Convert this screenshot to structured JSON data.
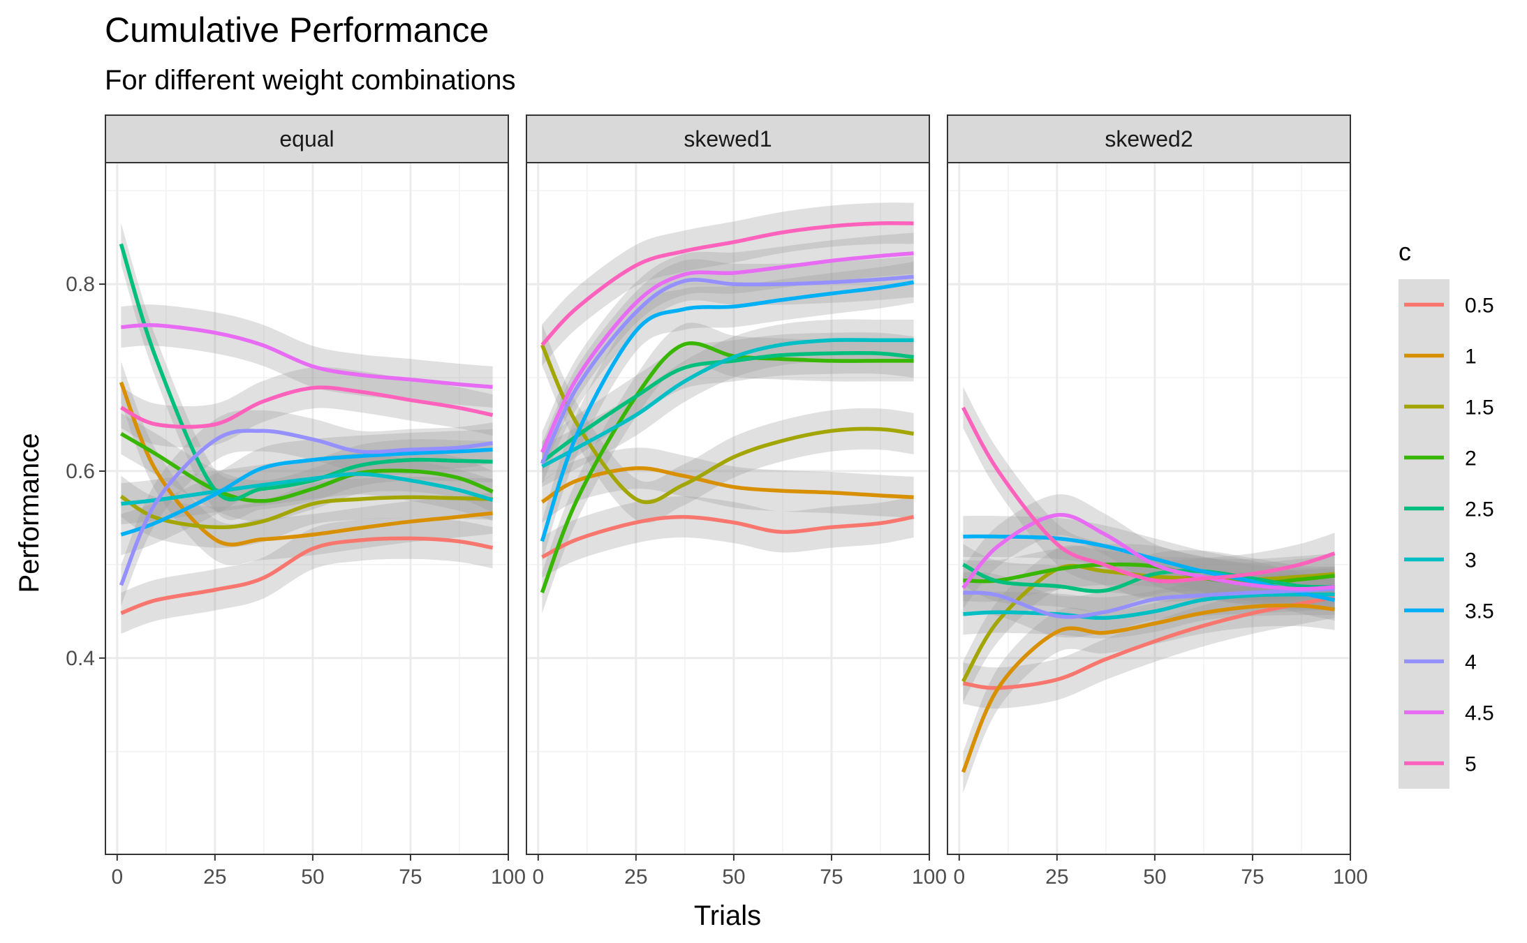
{
  "chart_data": {
    "type": "line",
    "title": "Cumulative Performance",
    "subtitle": "For different weight combinations",
    "xlabel": "Trials",
    "ylabel": "Performance",
    "xlim": [
      -3,
      100
    ],
    "ylim": [
      0.19,
      0.93
    ],
    "x_ticks": [
      0,
      25,
      50,
      75,
      100
    ],
    "x_tick_labels": [
      "0",
      "25",
      "50",
      "75",
      "100"
    ],
    "y_ticks": [
      0.4,
      0.6,
      0.8
    ],
    "y_tick_labels": [
      "0.4",
      "0.6",
      "0.8"
    ],
    "grid": true,
    "confidence_bands": true,
    "legend": {
      "title": "c",
      "position": "right",
      "entries": [
        "0.5",
        "1",
        "1.5",
        "2",
        "2.5",
        "3",
        "3.5",
        "4",
        "4.5",
        "5"
      ]
    },
    "colors": [
      "#F8766D",
      "#D89000",
      "#A3A500",
      "#39B600",
      "#00BF7D",
      "#00BFC4",
      "#00B0F6",
      "#9590FF",
      "#E76BF3",
      "#FF62BC"
    ],
    "x": [
      1,
      10,
      25,
      37,
      50,
      62,
      75,
      87,
      96
    ],
    "panels": [
      {
        "label": "equal",
        "series": [
          {
            "name": "0.5",
            "values": [
              0.448,
              0.462,
              0.473,
              0.485,
              0.517,
              0.526,
              0.528,
              0.525,
              0.518
            ]
          },
          {
            "name": "1",
            "values": [
              0.695,
              0.6,
              0.527,
              0.527,
              0.532,
              0.539,
              0.546,
              0.551,
              0.555
            ]
          },
          {
            "name": "1.5",
            "values": [
              0.573,
              0.55,
              0.54,
              0.546,
              0.565,
              0.57,
              0.572,
              0.571,
              0.57
            ]
          },
          {
            "name": "2",
            "values": [
              0.64,
              0.618,
              0.58,
              0.568,
              0.581,
              0.598,
              0.6,
              0.593,
              0.578
            ]
          },
          {
            "name": "2.5",
            "values": [
              0.843,
              0.72,
              0.58,
              0.581,
              0.59,
              0.606,
              0.612,
              0.611,
              0.61
            ]
          },
          {
            "name": "3",
            "values": [
              0.565,
              0.569,
              0.578,
              0.585,
              0.592,
              0.597,
              0.59,
              0.58,
              0.569
            ]
          },
          {
            "name": "3.5",
            "values": [
              0.532,
              0.545,
              0.575,
              0.603,
              0.612,
              0.616,
              0.619,
              0.621,
              0.623
            ]
          },
          {
            "name": "4",
            "values": [
              0.478,
              0.567,
              0.633,
              0.643,
              0.634,
              0.621,
              0.623,
              0.625,
              0.63
            ]
          },
          {
            "name": "4.5",
            "values": [
              0.754,
              0.756,
              0.748,
              0.735,
              0.712,
              0.703,
              0.698,
              0.693,
              0.69
            ]
          },
          {
            "name": "5",
            "values": [
              0.668,
              0.65,
              0.65,
              0.674,
              0.689,
              0.685,
              0.676,
              0.668,
              0.66
            ]
          }
        ]
      },
      {
        "label": "skewed1",
        "series": [
          {
            "name": "0.5",
            "values": [
              0.508,
              0.527,
              0.545,
              0.551,
              0.545,
              0.535,
              0.54,
              0.544,
              0.551
            ]
          },
          {
            "name": "1",
            "values": [
              0.567,
              0.59,
              0.603,
              0.595,
              0.583,
              0.579,
              0.577,
              0.574,
              0.572
            ]
          },
          {
            "name": "1.5",
            "values": [
              0.735,
              0.65,
              0.57,
              0.585,
              0.615,
              0.632,
              0.643,
              0.645,
              0.64
            ]
          },
          {
            "name": "2",
            "values": [
              0.47,
              0.57,
              0.68,
              0.735,
              0.723,
              0.72,
              0.718,
              0.718,
              0.718
            ]
          },
          {
            "name": "2.5",
            "values": [
              0.61,
              0.638,
              0.68,
              0.71,
              0.718,
              0.724,
              0.726,
              0.726,
              0.722
            ]
          },
          {
            "name": "3",
            "values": [
              0.605,
              0.625,
              0.66,
              0.695,
              0.722,
              0.735,
              0.74,
              0.74,
              0.74
            ]
          },
          {
            "name": "3.5",
            "values": [
              0.525,
              0.64,
              0.75,
              0.773,
              0.776,
              0.783,
              0.79,
              0.796,
              0.802
            ]
          },
          {
            "name": "4",
            "values": [
              0.608,
              0.69,
              0.77,
              0.803,
              0.8,
              0.8,
              0.802,
              0.805,
              0.808
            ]
          },
          {
            "name": "4.5",
            "values": [
              0.62,
              0.7,
              0.78,
              0.81,
              0.812,
              0.818,
              0.825,
              0.83,
              0.833
            ]
          },
          {
            "name": "5",
            "values": [
              0.735,
              0.775,
              0.82,
              0.835,
              0.845,
              0.855,
              0.862,
              0.865,
              0.865
            ]
          }
        ]
      },
      {
        "label": "skewed2",
        "series": [
          {
            "name": "0.5",
            "values": [
              0.373,
              0.368,
              0.377,
              0.398,
              0.418,
              0.434,
              0.448,
              0.458,
              0.465
            ]
          },
          {
            "name": "1",
            "values": [
              0.278,
              0.368,
              0.428,
              0.427,
              0.437,
              0.448,
              0.455,
              0.456,
              0.452
            ]
          },
          {
            "name": "1.5",
            "values": [
              0.375,
              0.44,
              0.495,
              0.493,
              0.487,
              0.485,
              0.484,
              0.487,
              0.49
            ]
          },
          {
            "name": "2",
            "values": [
              0.483,
              0.483,
              0.495,
              0.5,
              0.498,
              0.486,
              0.48,
              0.484,
              0.488
            ]
          },
          {
            "name": "2.5",
            "values": [
              0.5,
              0.482,
              0.477,
              0.472,
              0.49,
              0.493,
              0.485,
              0.477,
              0.476
            ]
          },
          {
            "name": "3",
            "values": [
              0.447,
              0.449,
              0.447,
              0.443,
              0.45,
              0.462,
              0.467,
              0.468,
              0.468
            ]
          },
          {
            "name": "3.5",
            "values": [
              0.53,
              0.53,
              0.528,
              0.52,
              0.506,
              0.493,
              0.482,
              0.47,
              0.462
            ]
          },
          {
            "name": "4",
            "values": [
              0.47,
              0.467,
              0.445,
              0.449,
              0.463,
              0.467,
              0.47,
              0.472,
              0.474
            ]
          },
          {
            "name": "4.5",
            "values": [
              0.475,
              0.52,
              0.553,
              0.533,
              0.5,
              0.487,
              0.478,
              0.474,
              0.476
            ]
          },
          {
            "name": "5",
            "values": [
              0.668,
              0.6,
              0.522,
              0.5,
              0.483,
              0.485,
              0.49,
              0.5,
              0.512
            ]
          }
        ]
      }
    ]
  }
}
